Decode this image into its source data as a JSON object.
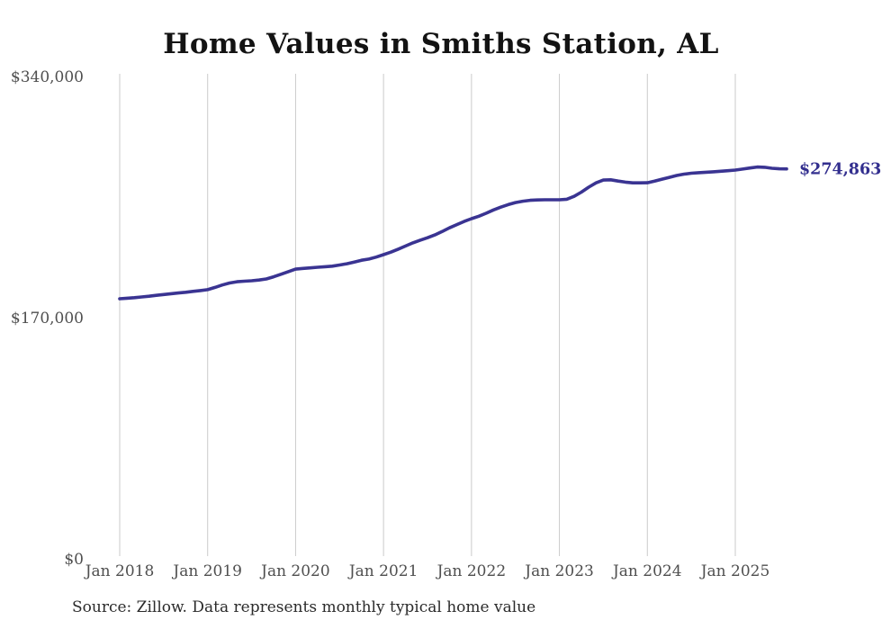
{
  "title": "Home Values in Smiths Station, AL",
  "source_note": "Source: Zillow. Data represents monthly typical home value",
  "end_label": "$274,863",
  "colors": {
    "line": "#3a3492",
    "grid": "#cbcbcb",
    "axis_text": "#4f4f4f",
    "title_text": "#131313",
    "source_text": "#2b2b2b",
    "end_label_text": "#322e8e",
    "background": "#ffffff"
  },
  "chart_data": {
    "type": "line",
    "title": "Home Values in Smiths Station, AL",
    "xlabel": "",
    "ylabel": "",
    "grid": "vertical-only",
    "legend": "none",
    "ylim": [
      0,
      340000
    ],
    "y_ticks": [
      0,
      170000,
      340000
    ],
    "y_tick_labels": [
      "$0",
      "$170,000",
      "$340,000"
    ],
    "x_tick_labels": [
      "Jan 2018",
      "Jan 2019",
      "Jan 2020",
      "Jan 2021",
      "Jan 2022",
      "Jan 2023",
      "Jan 2024",
      "Jan 2025"
    ],
    "frequency": "monthly",
    "x_start": "Jan 2018",
    "x_end": "Aug 2025",
    "final_value": 274863,
    "final_value_label": "$274,863",
    "series": [
      {
        "name": "Typical home value",
        "values": [
          183300,
          183700,
          184100,
          184600,
          185100,
          185700,
          186300,
          186900,
          187400,
          187900,
          188500,
          189100,
          189700,
          191300,
          193000,
          194400,
          195300,
          195700,
          196000,
          196500,
          197300,
          198800,
          200600,
          202400,
          204200,
          204700,
          205100,
          205500,
          205900,
          206300,
          207100,
          208000,
          209200,
          210500,
          211300,
          212700,
          214400,
          216200,
          218300,
          220500,
          222700,
          224600,
          226300,
          228300,
          230700,
          233300,
          235600,
          237800,
          239800,
          241500,
          243600,
          245900,
          247900,
          249700,
          251100,
          252100,
          252700,
          253000,
          253100,
          253100,
          253100,
          253500,
          255500,
          258500,
          262000,
          265000,
          267000,
          267200,
          266300,
          265500,
          265000,
          265000,
          265100,
          266200,
          267600,
          268900,
          270200,
          271200,
          271800,
          272200,
          272500,
          272800,
          273200,
          273600,
          274000,
          274700,
          275500,
          276200,
          276000,
          275300,
          274900,
          274863
        ]
      }
    ]
  }
}
